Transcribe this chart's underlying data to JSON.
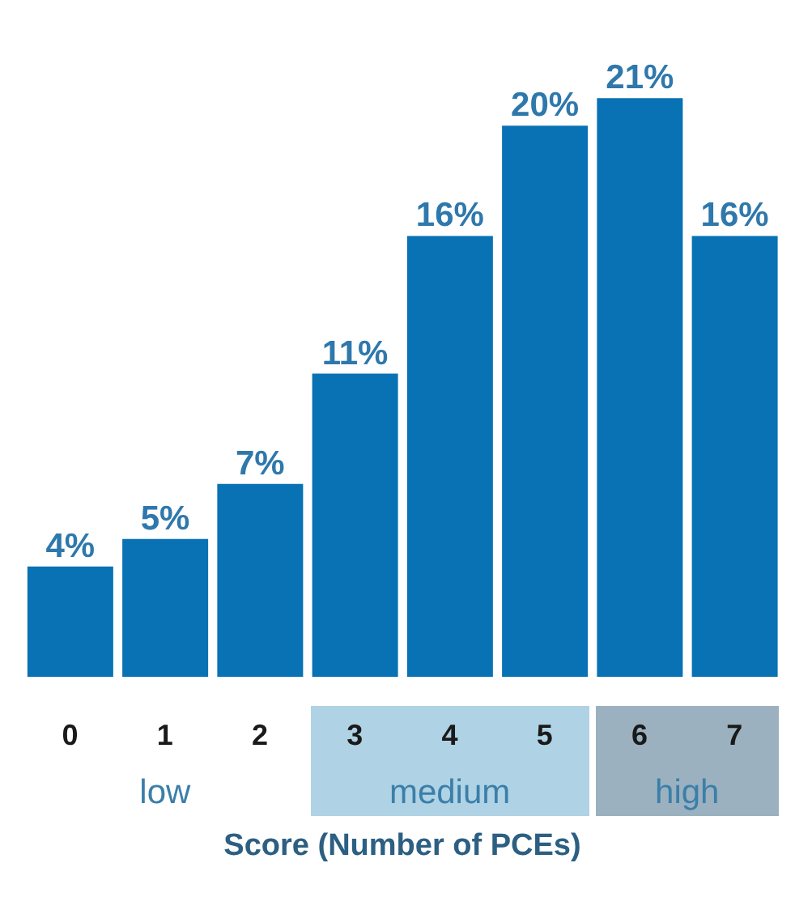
{
  "chart_data": {
    "type": "bar",
    "categories": [
      "0",
      "1",
      "2",
      "3",
      "4",
      "5",
      "6",
      "7"
    ],
    "values": [
      4,
      5,
      7,
      11,
      16,
      20,
      21,
      16
    ],
    "value_labels": [
      "4%",
      "5%",
      "7%",
      "11%",
      "16%",
      "20%",
      "21%",
      "16%"
    ],
    "color": "#0872b4",
    "tick_labels": "x",
    "xlabel": "Score (Number of PCEs)",
    "annotations": [
      "low",
      "medium",
      "high"
    ]
  }
}
